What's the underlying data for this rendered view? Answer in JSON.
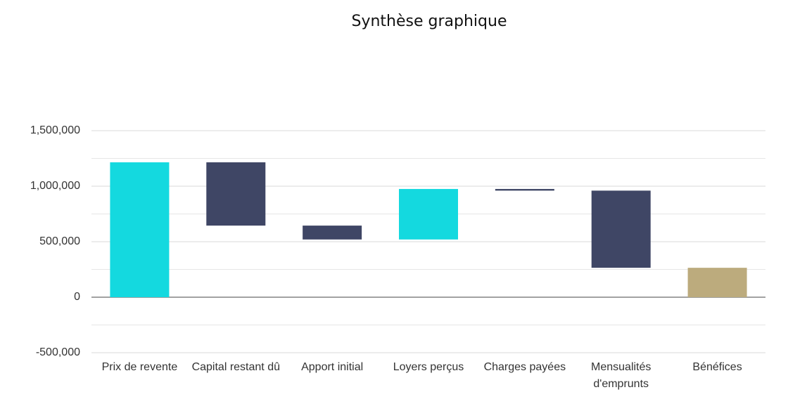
{
  "chart_data": {
    "type": "waterfall",
    "title": "Synthèse graphique",
    "categories": [
      "Prix de revente",
      "Capital restant dû",
      "Apport initial",
      "Loyers perçus",
      "Charges payées",
      "Mensualités d'emprunts",
      "Bénéfices"
    ],
    "values": [
      1215000,
      -570000,
      -125000,
      455000,
      -15000,
      -695000,
      265000
    ],
    "colors": {
      "increase": "#14d9df",
      "decrease": "#3f4665",
      "total": "#bcab7d"
    },
    "ylim": [
      -500000,
      1500000
    ],
    "yticks": [
      {
        "value": -500000,
        "label": "-500,000"
      },
      0,
      {
        "value": 500000,
        "label": "500,000"
      },
      {
        "value": 1000000,
        "label": "1,000,000"
      },
      {
        "value": 1500000,
        "label": "1,500,000"
      }
    ],
    "minor_yticks": [
      -250000,
      250000,
      750000,
      1250000
    ],
    "grid": true
  }
}
